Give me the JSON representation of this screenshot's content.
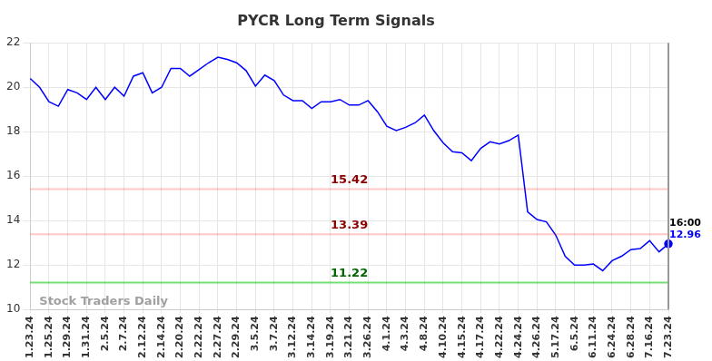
{
  "chart_data": {
    "type": "line",
    "title": "PYCR Long Term Signals",
    "categories": [
      "1.23.24",
      null,
      "1.25.24",
      null,
      "1.29.24",
      null,
      "1.31.24",
      null,
      "2.5.24",
      null,
      "2.7.24",
      null,
      "2.12.24",
      null,
      "2.14.24",
      null,
      "2.20.24",
      null,
      "2.22.24",
      null,
      "2.27.24",
      null,
      "2.29.24",
      null,
      "3.5.24",
      null,
      "3.7.24",
      null,
      "3.12.24",
      null,
      "3.14.24",
      null,
      "3.19.24",
      null,
      "3.21.24",
      null,
      "3.26.24",
      null,
      "4.1.24",
      null,
      "4.3.24",
      null,
      "4.8.24",
      null,
      "4.10.24",
      null,
      "4.15.24",
      null,
      "4.17.24",
      null,
      "4.22.24",
      null,
      "4.24.24",
      null,
      "4.26.24",
      null,
      "5.17.24",
      null,
      "6.5.24",
      null,
      "6.11.24",
      null,
      "6.24.24",
      null,
      "6.28.24",
      null,
      "7.16.24",
      null,
      "7.23.24"
    ],
    "values": [
      20.4,
      20.0,
      19.35,
      19.15,
      19.9,
      19.75,
      19.45,
      20.0,
      19.45,
      20.0,
      19.6,
      20.5,
      20.65,
      19.75,
      20.0,
      20.85,
      20.85,
      20.5,
      20.8,
      21.1,
      21.35,
      21.25,
      21.1,
      20.75,
      20.05,
      20.55,
      20.3,
      19.65,
      19.4,
      19.4,
      19.05,
      19.35,
      19.35,
      19.45,
      19.2,
      19.2,
      19.4,
      18.9,
      18.25,
      18.05,
      18.2,
      18.4,
      18.75,
      18.05,
      17.5,
      17.1,
      17.05,
      16.7,
      17.25,
      17.55,
      17.45,
      17.6,
      17.85,
      14.4,
      14.05,
      13.95,
      13.35,
      12.4,
      12.0,
      12.0,
      12.05,
      11.75,
      12.2,
      12.4,
      12.7,
      12.75,
      13.1,
      12.6,
      12.96
    ],
    "color": "#0000ff",
    "ylim": [
      10,
      22
    ],
    "yticks": [
      10,
      12,
      14,
      16,
      18,
      20,
      22
    ],
    "grid": true,
    "levels": [
      {
        "value": 15.42,
        "color": "#8b0000"
      },
      {
        "value": 13.39,
        "color": "#8b0000"
      },
      {
        "value": 11.22,
        "color": "#006400"
      }
    ],
    "last_point": {
      "time": "16:00",
      "value": 12.96
    },
    "watermark": "Stock Traders Daily"
  }
}
